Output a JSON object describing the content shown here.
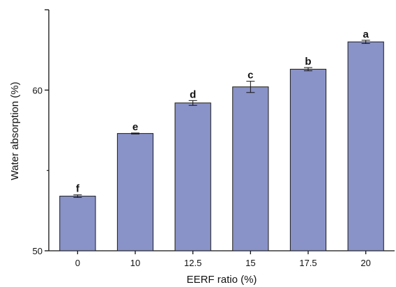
{
  "chart_data": {
    "type": "bar",
    "title": "",
    "xlabel": "EERF ratio (%)",
    "ylabel": "Water absorption (%)",
    "categories": [
      "0",
      "10",
      "12.5",
      "15",
      "17.5",
      "20"
    ],
    "values": [
      53.4,
      57.3,
      59.2,
      60.2,
      61.3,
      63.0
    ],
    "errors": [
      0.08,
      0.03,
      0.15,
      0.35,
      0.1,
      0.1
    ],
    "significance_letters": [
      "f",
      "e",
      "d",
      "c",
      "b",
      "a"
    ],
    "ylim": [
      50,
      65
    ],
    "yticks": [
      "50",
      "60"
    ],
    "grid": false,
    "legend": "none",
    "colors": {
      "bar_fill": "#8a93c8",
      "bar_stroke": "#1a1a1a",
      "axis": "#111111"
    }
  }
}
